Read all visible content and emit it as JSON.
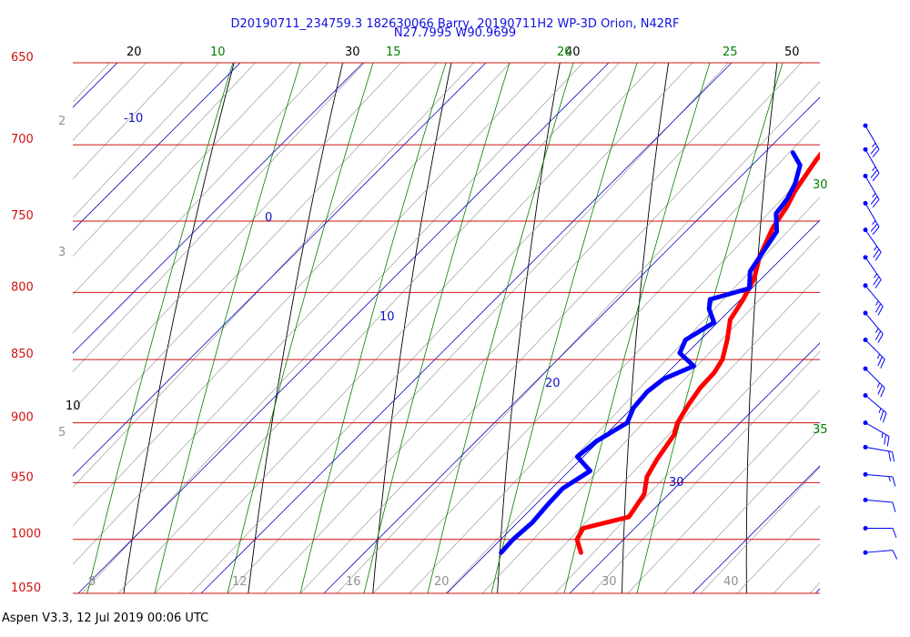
{
  "header": {
    "title_line1": "D20190711_234759.3 182630066 Barry, 20190711H2 WP-3D Orion, N42RF",
    "title_line2": "N27.7995 W90.9699"
  },
  "footer": {
    "text": "Aspen V3.3, 12 Jul 2019  00:06 UTC"
  },
  "colors": {
    "isobar": "#d01010",
    "isotherm": "#1010c0",
    "dry_adiabat": "#000000",
    "moist_adiabat": "#008000",
    "mixing_ratio": "#909090",
    "temperature": "#ff0000",
    "dewpoint": "#0000ff",
    "wind": "#0000ff"
  },
  "chart_data": {
    "type": "line",
    "subtype": "skew-t log-p diagram",
    "ylim": [
      1050,
      650
    ],
    "y_scale": "log",
    "isobars": [
      {
        "p": 650,
        "label": "650"
      },
      {
        "p": 700,
        "label": "700"
      },
      {
        "p": 750,
        "label": "750"
      },
      {
        "p": 800,
        "label": "800"
      },
      {
        "p": 850,
        "label": "850"
      },
      {
        "p": 900,
        "label": "900"
      },
      {
        "p": 950,
        "label": "950"
      },
      {
        "p": 1000,
        "label": "1000"
      },
      {
        "p": 1050,
        "label": "1050"
      }
    ],
    "isotherm_labels": [
      {
        "t": -10,
        "label": "-10"
      },
      {
        "t": 0,
        "label": "0"
      },
      {
        "t": 10,
        "label": "10"
      },
      {
        "t": 20,
        "label": "20"
      },
      {
        "t": 30,
        "label": "30"
      }
    ],
    "bottom_axis_labels": [
      "8",
      "12",
      "16",
      "20",
      "30",
      "40"
    ],
    "dry_adiabat_labels": [
      "20",
      "30",
      "40",
      "50",
      "10"
    ],
    "moist_adiabat_labels": [
      "10",
      "15",
      "20",
      "25",
      "30",
      "35"
    ],
    "mixing_ratio_labels": [
      "2",
      "3",
      "5"
    ],
    "temperature_profile": [
      {
        "p": 1012,
        "t": 27.6
      },
      {
        "p": 1000,
        "t": 26.2
      },
      {
        "p": 990,
        "t": 25.8
      },
      {
        "p": 980,
        "t": 28.6
      },
      {
        "p": 960,
        "t": 28.0
      },
      {
        "p": 945,
        "t": 26.8
      },
      {
        "p": 930,
        "t": 26.2
      },
      {
        "p": 910,
        "t": 25.6
      },
      {
        "p": 900,
        "t": 24.9
      },
      {
        "p": 885,
        "t": 24.3
      },
      {
        "p": 872,
        "t": 23.9
      },
      {
        "p": 860,
        "t": 23.8
      },
      {
        "p": 850,
        "t": 23.4
      },
      {
        "p": 835,
        "t": 22.2
      },
      {
        "p": 820,
        "t": 20.8
      },
      {
        "p": 805,
        "t": 20.2
      },
      {
        "p": 790,
        "t": 19.4
      },
      {
        "p": 775,
        "t": 18.1
      },
      {
        "p": 755,
        "t": 16.8
      },
      {
        "p": 740,
        "t": 16.2
      },
      {
        "p": 730,
        "t": 15.6
      },
      {
        "p": 720,
        "t": 15.2
      },
      {
        "p": 710,
        "t": 14.8
      },
      {
        "p": 703,
        "t": 14.6
      }
    ],
    "dewpoint_profile": [
      {
        "p": 1012,
        "t": 21.1
      },
      {
        "p": 1000,
        "t": 21.0
      },
      {
        "p": 985,
        "t": 21.2
      },
      {
        "p": 970,
        "t": 21.0
      },
      {
        "p": 955,
        "t": 20.9
      },
      {
        "p": 940,
        "t": 21.7
      },
      {
        "p": 928,
        "t": 19.5
      },
      {
        "p": 915,
        "t": 19.8
      },
      {
        "p": 900,
        "t": 20.8
      },
      {
        "p": 888,
        "t": 20.1
      },
      {
        "p": 875,
        "t": 19.9
      },
      {
        "p": 865,
        "t": 20.2
      },
      {
        "p": 855,
        "t": 21.6
      },
      {
        "p": 845,
        "t": 19.4
      },
      {
        "p": 835,
        "t": 18.8
      },
      {
        "p": 822,
        "t": 19.7
      },
      {
        "p": 812,
        "t": 18.2
      },
      {
        "p": 805,
        "t": 17.5
      },
      {
        "p": 797,
        "t": 19.8
      },
      {
        "p": 785,
        "t": 18.5
      },
      {
        "p": 770,
        "t": 17.9
      },
      {
        "p": 757,
        "t": 17.4
      },
      {
        "p": 745,
        "t": 15.9
      },
      {
        "p": 735,
        "t": 15.6
      },
      {
        "p": 725,
        "t": 15.0
      },
      {
        "p": 713,
        "t": 13.9
      },
      {
        "p": 705,
        "t": 12.3
      }
    ],
    "temperature_point": {
      "p": 700,
      "t": 15.8
    },
    "wind_barbs": [
      {
        "p": 1012,
        "dir": 85,
        "kt": 10
      },
      {
        "p": 990,
        "dir": 90,
        "kt": 10
      },
      {
        "p": 965,
        "dir": 95,
        "kt": 10
      },
      {
        "p": 943,
        "dir": 95,
        "kt": 15
      },
      {
        "p": 920,
        "dir": 100,
        "kt": 20
      },
      {
        "p": 900,
        "dir": 120,
        "kt": 25
      },
      {
        "p": 878,
        "dir": 130,
        "kt": 25
      },
      {
        "p": 857,
        "dir": 135,
        "kt": 25
      },
      {
        "p": 835,
        "dir": 135,
        "kt": 25
      },
      {
        "p": 815,
        "dir": 140,
        "kt": 25
      },
      {
        "p": 795,
        "dir": 140,
        "kt": 25
      },
      {
        "p": 775,
        "dir": 145,
        "kt": 25
      },
      {
        "p": 756,
        "dir": 145,
        "kt": 25
      },
      {
        "p": 738,
        "dir": 150,
        "kt": 25
      },
      {
        "p": 720,
        "dir": 150,
        "kt": 25
      },
      {
        "p": 703,
        "dir": 150,
        "kt": 25
      },
      {
        "p": 688,
        "dir": 150,
        "kt": 25
      }
    ]
  }
}
